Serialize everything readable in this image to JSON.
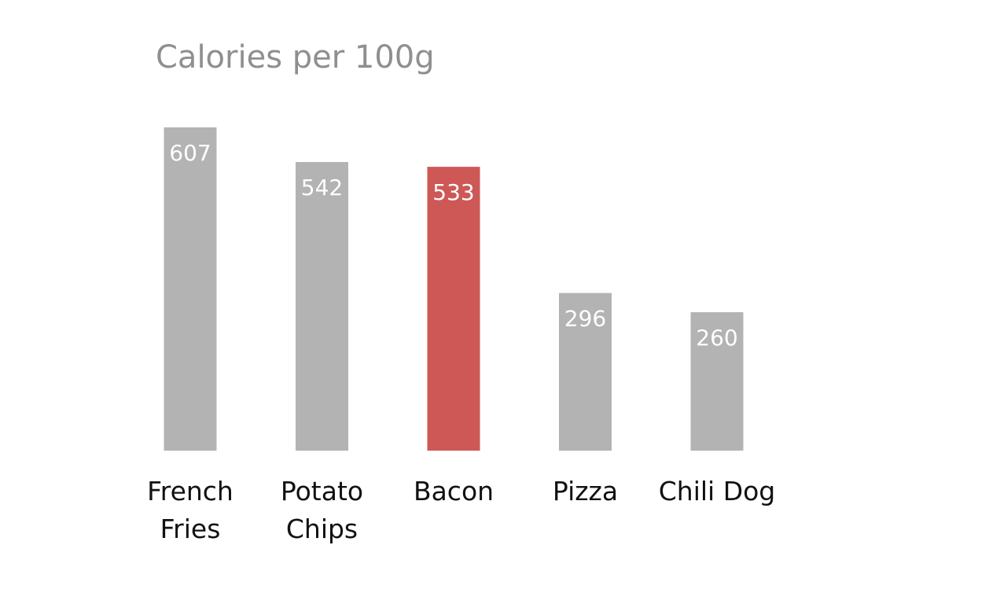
{
  "chart_data": {
    "type": "bar",
    "title": "Calories per 100g",
    "categories": [
      [
        "French",
        "Fries"
      ],
      [
        "Potato",
        "Chips"
      ],
      [
        "Bacon"
      ],
      [
        "Pizza"
      ],
      [
        "Chili Dog"
      ]
    ],
    "values": [
      607,
      542,
      533,
      296,
      260
    ],
    "highlight_index": 2,
    "xlabel": "",
    "ylabel": "",
    "ylim": [
      0,
      607
    ],
    "grid": false,
    "legend": "none",
    "colors": {
      "bar": "#b3b3b3",
      "highlight": "#cd5856",
      "value_label": "#ffffff",
      "category_label": "#111111",
      "title": "#8f8f8f"
    }
  }
}
